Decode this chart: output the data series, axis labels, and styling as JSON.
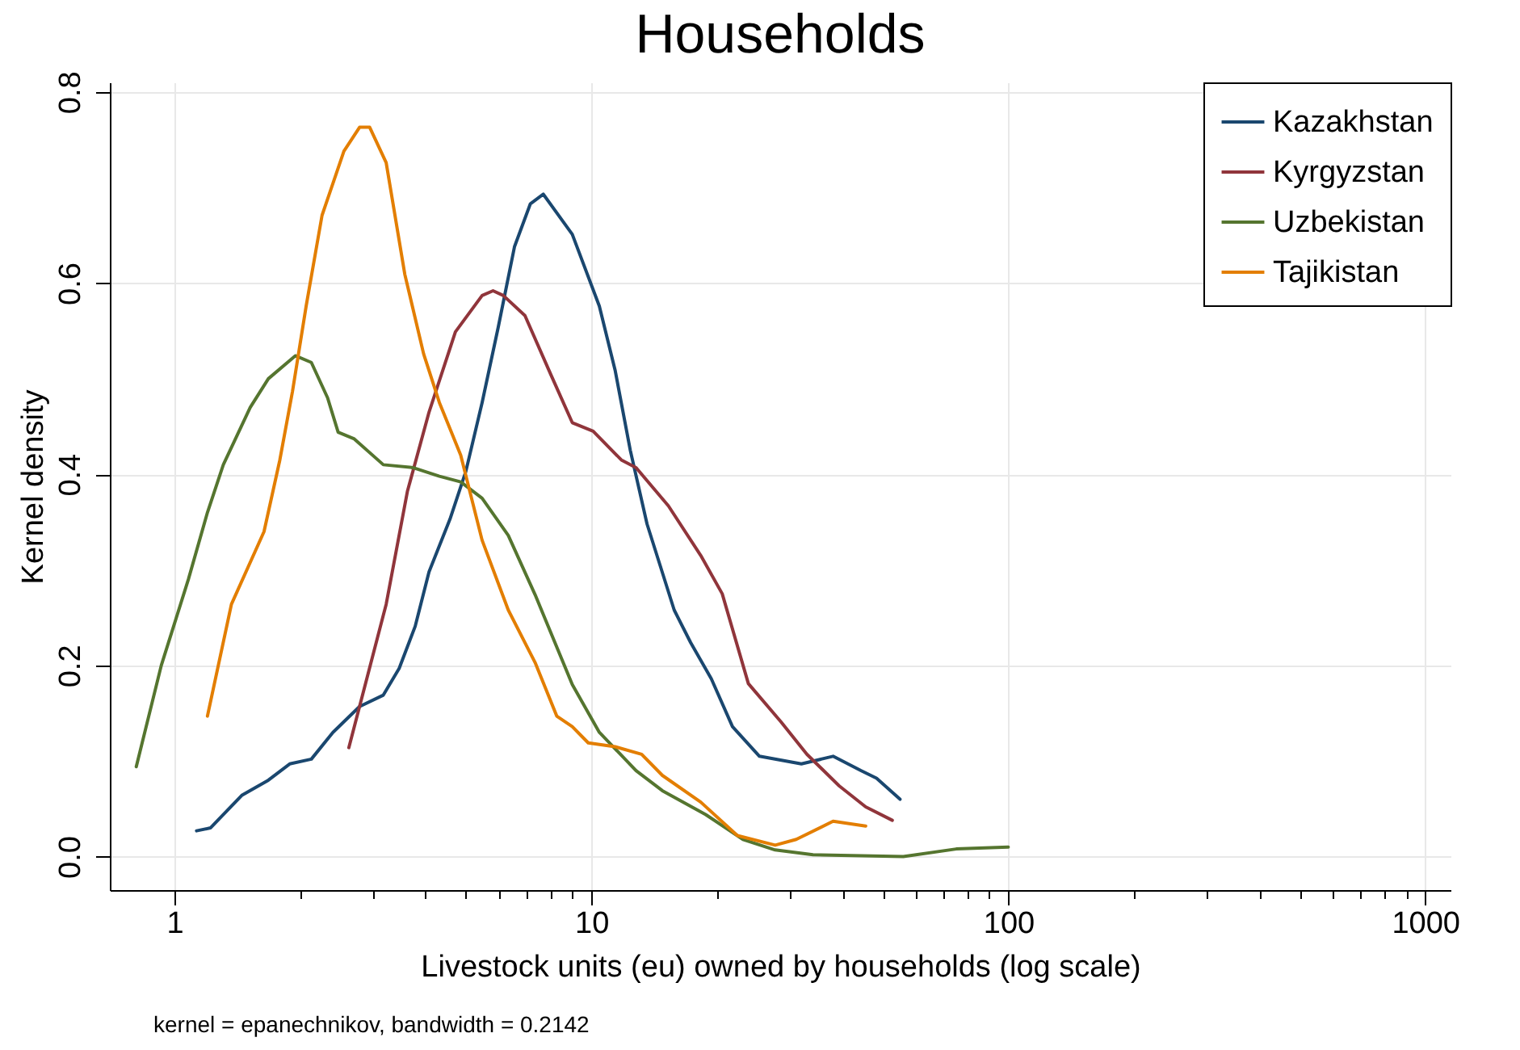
{
  "chart_data": {
    "type": "line",
    "title": "Households",
    "xlabel": "Livestock units (eu) owned by households (log scale)",
    "ylabel": "Kernel density",
    "annotations": [
      "kernel = epanechnikov, bandwidth = 0.2142"
    ],
    "log": "x",
    "grid": true,
    "legend": "top right",
    "xlim": [
      0.7,
      1150
    ],
    "ylim": [
      -0.035,
      0.81
    ],
    "xticks": [
      1,
      {
        "value": 2,
        "label": null
      },
      {
        "value": 3,
        "label": null
      },
      {
        "value": 4,
        "label": null
      },
      {
        "value": 5,
        "label": null
      },
      {
        "value": 6,
        "label": null
      },
      {
        "value": 7,
        "label": null
      },
      {
        "value": 8,
        "label": null
      },
      {
        "value": 9,
        "label": null
      },
      10,
      {
        "value": 20,
        "label": null
      },
      {
        "value": 30,
        "label": null
      },
      {
        "value": 40,
        "label": null
      },
      {
        "value": 50,
        "label": null
      },
      {
        "value": 60,
        "label": null
      },
      {
        "value": 70,
        "label": null
      },
      {
        "value": 80,
        "label": null
      },
      {
        "value": 90,
        "label": null
      },
      100,
      {
        "value": 200,
        "label": null
      },
      {
        "value": 300,
        "label": null
      },
      {
        "value": 400,
        "label": null
      },
      {
        "value": 500,
        "label": null
      },
      {
        "value": 600,
        "label": null
      },
      {
        "value": 700,
        "label": null
      },
      {
        "value": 800,
        "label": null
      },
      {
        "value": 900,
        "label": null
      },
      1000
    ],
    "yticks": [
      {
        "value": 0,
        "label": "0.0"
      },
      0.2,
      0.4,
      0.6,
      0.8
    ],
    "series": [
      {
        "name": "Kazakhstan",
        "color": "#1a476f",
        "x": [
          1.13,
          1.22,
          1.45,
          1.68,
          1.89,
          2.13,
          2.4,
          2.78,
          3.17,
          3.46,
          3.78,
          4.08,
          4.58,
          5.0,
          5.47,
          5.98,
          6.54,
          7.14,
          7.67,
          9.0,
          10.45,
          11.4,
          12.4,
          13.6,
          15.8,
          17.3,
          19.4,
          21.8,
          25.3,
          31.9,
          38,
          44.3,
          48.3,
          55
        ],
        "values": [
          0.027,
          0.03,
          0.064,
          0.08,
          0.097,
          0.102,
          0.13,
          0.157,
          0.169,
          0.197,
          0.241,
          0.298,
          0.353,
          0.403,
          0.475,
          0.554,
          0.638,
          0.683,
          0.693,
          0.651,
          0.576,
          0.509,
          0.425,
          0.348,
          0.258,
          0.224,
          0.186,
          0.136,
          0.105,
          0.097,
          0.105,
          0.09,
          0.082,
          0.06
        ]
      },
      {
        "name": "Kyrgyzstan",
        "color": "#90353b",
        "x": [
          2.62,
          3.22,
          3.62,
          4.08,
          4.72,
          5.47,
          5.81,
          6.15,
          6.93,
          8.0,
          9.0,
          10.1,
          11.8,
          12.8,
          15.3,
          18.3,
          20.6,
          23.8,
          28.5,
          32.9,
          39.3,
          45.5,
          52.7
        ],
        "values": [
          0.114,
          0.264,
          0.382,
          0.465,
          0.549,
          0.587,
          0.592,
          0.587,
          0.566,
          0.504,
          0.454,
          0.445,
          0.415,
          0.407,
          0.367,
          0.315,
          0.275,
          0.181,
          0.141,
          0.107,
          0.074,
          0.052,
          0.038
        ]
      },
      {
        "name": "Uzbekistan",
        "color": "#55752f",
        "x": [
          0.81,
          0.93,
          1.08,
          1.2,
          1.31,
          1.52,
          1.68,
          1.95,
          2.13,
          2.33,
          2.47,
          2.7,
          3.17,
          3.73,
          4.32,
          4.86,
          5.47,
          6.32,
          7.33,
          9.0,
          10.45,
          12.8,
          14.8,
          18.8,
          23.1,
          27.6,
          34,
          56,
          75,
          100
        ],
        "values": [
          0.094,
          0.2,
          0.29,
          0.36,
          0.41,
          0.47,
          0.5,
          0.524,
          0.517,
          0.48,
          0.444,
          0.437,
          0.41,
          0.407,
          0.398,
          0.392,
          0.375,
          0.336,
          0.274,
          0.18,
          0.13,
          0.09,
          0.069,
          0.044,
          0.018,
          0.007,
          0.002,
          0.0,
          0.008,
          0.01
        ]
      },
      {
        "name": "Tajikistan",
        "color": "#e37e00",
        "x": [
          1.2,
          1.37,
          1.64,
          1.79,
          1.92,
          2.07,
          2.26,
          2.55,
          2.78,
          2.94,
          3.22,
          3.57,
          3.96,
          4.32,
          4.86,
          5.47,
          6.32,
          7.33,
          8.26,
          9.0,
          9.83,
          11.4,
          13.2,
          14.8,
          18.3,
          22.4,
          27.6,
          31,
          38,
          45.5
        ],
        "values": [
          0.147,
          0.264,
          0.34,
          0.415,
          0.487,
          0.576,
          0.671,
          0.738,
          0.763,
          0.763,
          0.726,
          0.609,
          0.526,
          0.475,
          0.42,
          0.331,
          0.258,
          0.203,
          0.147,
          0.136,
          0.119,
          0.115,
          0.107,
          0.085,
          0.057,
          0.022,
          0.012,
          0.018,
          0.037,
          0.032
        ]
      }
    ]
  }
}
